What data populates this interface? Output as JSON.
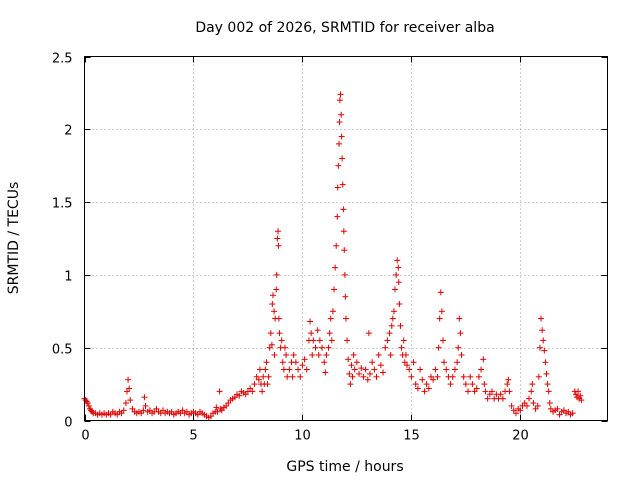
{
  "chart_data": {
    "type": "scatter",
    "title": "Day 002 of 2026, SRMTID for receiver alba",
    "xlabel": "GPS time / hours",
    "ylabel": "SRMTID / TECUs",
    "xlim": [
      0,
      24
    ],
    "ylim": [
      0,
      2.5
    ],
    "xticks": [
      0,
      5,
      10,
      15,
      20
    ],
    "yticks": [
      0,
      0.5,
      1,
      1.5,
      2,
      2.5
    ],
    "xtick_labels": [
      "0",
      "5",
      "10",
      "15",
      "20"
    ],
    "ytick_labels": [
      "0",
      "0.5",
      "1",
      "1.5",
      "2",
      "2.5"
    ],
    "grid": true,
    "marker": "plus",
    "color": "#e00000",
    "series": [
      {
        "name": "alba",
        "points": [
          [
            0.0,
            0.15
          ],
          [
            0.05,
            0.14
          ],
          [
            0.1,
            0.13
          ],
          [
            0.15,
            0.12
          ],
          [
            0.2,
            0.1
          ],
          [
            0.25,
            0.08
          ],
          [
            0.3,
            0.07
          ],
          [
            0.35,
            0.06
          ],
          [
            0.4,
            0.05
          ],
          [
            0.5,
            0.05
          ],
          [
            0.6,
            0.04
          ],
          [
            0.7,
            0.05
          ],
          [
            0.8,
            0.04
          ],
          [
            0.9,
            0.05
          ],
          [
            1.0,
            0.04
          ],
          [
            1.1,
            0.05
          ],
          [
            1.2,
            0.04
          ],
          [
            1.3,
            0.06
          ],
          [
            1.4,
            0.05
          ],
          [
            1.5,
            0.04
          ],
          [
            1.6,
            0.06
          ],
          [
            1.7,
            0.05
          ],
          [
            1.8,
            0.07
          ],
          [
            1.9,
            0.12
          ],
          [
            1.95,
            0.2
          ],
          [
            2.0,
            0.28
          ],
          [
            2.05,
            0.22
          ],
          [
            2.1,
            0.14
          ],
          [
            2.2,
            0.08
          ],
          [
            2.3,
            0.06
          ],
          [
            2.4,
            0.05
          ],
          [
            2.5,
            0.06
          ],
          [
            2.6,
            0.05
          ],
          [
            2.7,
            0.07
          ],
          [
            2.75,
            0.16
          ],
          [
            2.8,
            0.1
          ],
          [
            2.9,
            0.06
          ],
          [
            3.0,
            0.07
          ],
          [
            3.1,
            0.05
          ],
          [
            3.2,
            0.06
          ],
          [
            3.3,
            0.08
          ],
          [
            3.4,
            0.06
          ],
          [
            3.5,
            0.05
          ],
          [
            3.6,
            0.07
          ],
          [
            3.7,
            0.05
          ],
          [
            3.8,
            0.06
          ],
          [
            3.9,
            0.05
          ],
          [
            4.0,
            0.06
          ],
          [
            4.1,
            0.04
          ],
          [
            4.2,
            0.05
          ],
          [
            4.3,
            0.06
          ],
          [
            4.4,
            0.05
          ],
          [
            4.5,
            0.07
          ],
          [
            4.6,
            0.05
          ],
          [
            4.7,
            0.06
          ],
          [
            4.8,
            0.04
          ],
          [
            4.9,
            0.05
          ],
          [
            5.0,
            0.06
          ],
          [
            5.1,
            0.05
          ],
          [
            5.2,
            0.04
          ],
          [
            5.3,
            0.06
          ],
          [
            5.4,
            0.05
          ],
          [
            5.5,
            0.04
          ],
          [
            5.6,
            0.03
          ],
          [
            5.7,
            0.02
          ],
          [
            5.8,
            0.03
          ],
          [
            5.9,
            0.05
          ],
          [
            6.0,
            0.06
          ],
          [
            6.05,
            0.09
          ],
          [
            6.1,
            0.06
          ],
          [
            6.2,
            0.2
          ],
          [
            6.25,
            0.08
          ],
          [
            6.3,
            0.07
          ],
          [
            6.4,
            0.09
          ],
          [
            6.5,
            0.1
          ],
          [
            6.6,
            0.12
          ],
          [
            6.7,
            0.14
          ],
          [
            6.8,
            0.15
          ],
          [
            6.9,
            0.16
          ],
          [
            7.0,
            0.18
          ],
          [
            7.1,
            0.17
          ],
          [
            7.2,
            0.2
          ],
          [
            7.3,
            0.19
          ],
          [
            7.4,
            0.18
          ],
          [
            7.5,
            0.2
          ],
          [
            7.6,
            0.22
          ],
          [
            7.7,
            0.2
          ],
          [
            7.8,
            0.25
          ],
          [
            7.9,
            0.3
          ],
          [
            8.0,
            0.28
          ],
          [
            8.05,
            0.35
          ],
          [
            8.1,
            0.25
          ],
          [
            8.15,
            0.2
          ],
          [
            8.2,
            0.3
          ],
          [
            8.25,
            0.25
          ],
          [
            8.3,
            0.35
          ],
          [
            8.35,
            0.4
          ],
          [
            8.4,
            0.25
          ],
          [
            8.45,
            0.3
          ],
          [
            8.5,
            0.5
          ],
          [
            8.55,
            0.6
          ],
          [
            8.6,
            0.52
          ],
          [
            8.62,
            0.8
          ],
          [
            8.65,
            0.86
          ],
          [
            8.7,
            0.75
          ],
          [
            8.72,
            0.45
          ],
          [
            8.75,
            0.7
          ],
          [
            8.8,
            0.9
          ],
          [
            8.82,
            1.0
          ],
          [
            8.85,
            1.25
          ],
          [
            8.88,
            1.3
          ],
          [
            8.9,
            1.2
          ],
          [
            8.92,
            0.7
          ],
          [
            8.95,
            0.6
          ],
          [
            9.0,
            0.5
          ],
          [
            9.05,
            0.55
          ],
          [
            9.1,
            0.4
          ],
          [
            9.15,
            0.35
          ],
          [
            9.2,
            0.5
          ],
          [
            9.25,
            0.45
          ],
          [
            9.3,
            0.3
          ],
          [
            9.4,
            0.35
          ],
          [
            9.5,
            0.4
          ],
          [
            9.55,
            0.3
          ],
          [
            9.6,
            0.45
          ],
          [
            9.7,
            0.4
          ],
          [
            9.8,
            0.35
          ],
          [
            9.9,
            0.3
          ],
          [
            10.0,
            0.38
          ],
          [
            10.1,
            0.42
          ],
          [
            10.2,
            0.35
          ],
          [
            10.3,
            0.55
          ],
          [
            10.35,
            0.68
          ],
          [
            10.4,
            0.6
          ],
          [
            10.45,
            0.45
          ],
          [
            10.5,
            0.55
          ],
          [
            10.6,
            0.5
          ],
          [
            10.7,
            0.62
          ],
          [
            10.75,
            0.45
          ],
          [
            10.8,
            0.55
          ],
          [
            10.9,
            0.5
          ],
          [
            11.0,
            0.4
          ],
          [
            11.05,
            0.33
          ],
          [
            11.1,
            0.45
          ],
          [
            11.2,
            0.5
          ],
          [
            11.25,
            0.6
          ],
          [
            11.3,
            0.7
          ],
          [
            11.35,
            0.55
          ],
          [
            11.4,
            0.75
          ],
          [
            11.45,
            0.9
          ],
          [
            11.5,
            1.05
          ],
          [
            11.55,
            1.2
          ],
          [
            11.6,
            1.4
          ],
          [
            11.62,
            1.6
          ],
          [
            11.65,
            1.75
          ],
          [
            11.68,
            1.9
          ],
          [
            11.7,
            2.05
          ],
          [
            11.72,
            2.2
          ],
          [
            11.75,
            2.24
          ],
          [
            11.78,
            2.1
          ],
          [
            11.8,
            1.95
          ],
          [
            11.82,
            1.8
          ],
          [
            11.85,
            1.62
          ],
          [
            11.88,
            1.45
          ],
          [
            11.9,
            1.3
          ],
          [
            11.92,
            1.17
          ],
          [
            11.95,
            1.0
          ],
          [
            11.97,
            0.85
          ],
          [
            12.0,
            0.7
          ],
          [
            12.05,
            0.55
          ],
          [
            12.1,
            0.42
          ],
          [
            12.15,
            0.32
          ],
          [
            12.2,
            0.25
          ],
          [
            12.25,
            0.38
          ],
          [
            12.3,
            0.3
          ],
          [
            12.35,
            0.45
          ],
          [
            12.4,
            0.35
          ],
          [
            12.5,
            0.4
          ],
          [
            12.6,
            0.32
          ],
          [
            12.7,
            0.36
          ],
          [
            12.8,
            0.3
          ],
          [
            12.9,
            0.35
          ],
          [
            13.0,
            0.28
          ],
          [
            13.05,
            0.6
          ],
          [
            13.1,
            0.32
          ],
          [
            13.2,
            0.4
          ],
          [
            13.3,
            0.35
          ],
          [
            13.4,
            0.3
          ],
          [
            13.5,
            0.45
          ],
          [
            13.6,
            0.38
          ],
          [
            13.7,
            0.33
          ],
          [
            13.8,
            0.5
          ],
          [
            13.9,
            0.55
          ],
          [
            14.0,
            0.6
          ],
          [
            14.05,
            0.45
          ],
          [
            14.1,
            0.65
          ],
          [
            14.15,
            0.7
          ],
          [
            14.2,
            0.75
          ],
          [
            14.25,
            0.9
          ],
          [
            14.3,
            1.0
          ],
          [
            14.35,
            1.1
          ],
          [
            14.4,
            1.05
          ],
          [
            14.42,
            0.95
          ],
          [
            14.45,
            0.8
          ],
          [
            14.5,
            0.65
          ],
          [
            14.55,
            0.5
          ],
          [
            14.6,
            0.45
          ],
          [
            14.65,
            0.55
          ],
          [
            14.7,
            0.4
          ],
          [
            14.75,
            0.45
          ],
          [
            14.8,
            0.38
          ],
          [
            14.9,
            0.35
          ],
          [
            15.0,
            0.3
          ],
          [
            15.1,
            0.4
          ],
          [
            15.2,
            0.25
          ],
          [
            15.3,
            0.22
          ],
          [
            15.4,
            0.35
          ],
          [
            15.5,
            0.28
          ],
          [
            15.6,
            0.2
          ],
          [
            15.7,
            0.25
          ],
          [
            15.8,
            0.22
          ],
          [
            15.9,
            0.3
          ],
          [
            16.0,
            0.28
          ],
          [
            16.1,
            0.35
          ],
          [
            16.2,
            0.3
          ],
          [
            16.25,
            0.5
          ],
          [
            16.3,
            0.7
          ],
          [
            16.35,
            0.88
          ],
          [
            16.4,
            0.75
          ],
          [
            16.45,
            0.55
          ],
          [
            16.5,
            0.4
          ],
          [
            16.6,
            0.35
          ],
          [
            16.7,
            0.3
          ],
          [
            16.8,
            0.25
          ],
          [
            16.9,
            0.3
          ],
          [
            17.0,
            0.35
          ],
          [
            17.1,
            0.4
          ],
          [
            17.15,
            0.5
          ],
          [
            17.2,
            0.7
          ],
          [
            17.25,
            0.6
          ],
          [
            17.3,
            0.45
          ],
          [
            17.4,
            0.3
          ],
          [
            17.5,
            0.25
          ],
          [
            17.6,
            0.2
          ],
          [
            17.7,
            0.3
          ],
          [
            17.8,
            0.25
          ],
          [
            17.9,
            0.2
          ],
          [
            18.0,
            0.22
          ],
          [
            18.1,
            0.3
          ],
          [
            18.2,
            0.35
          ],
          [
            18.3,
            0.42
          ],
          [
            18.35,
            0.25
          ],
          [
            18.4,
            0.2
          ],
          [
            18.5,
            0.15
          ],
          [
            18.6,
            0.18
          ],
          [
            18.7,
            0.2
          ],
          [
            18.8,
            0.15
          ],
          [
            18.9,
            0.18
          ],
          [
            19.0,
            0.15
          ],
          [
            19.1,
            0.18
          ],
          [
            19.2,
            0.15
          ],
          [
            19.3,
            0.2
          ],
          [
            19.4,
            0.25
          ],
          [
            19.45,
            0.28
          ],
          [
            19.5,
            0.2
          ],
          [
            19.6,
            0.1
          ],
          [
            19.7,
            0.07
          ],
          [
            19.8,
            0.05
          ],
          [
            19.9,
            0.08
          ],
          [
            20.0,
            0.07
          ],
          [
            20.1,
            0.1
          ],
          [
            20.2,
            0.12
          ],
          [
            20.3,
            0.1
          ],
          [
            20.4,
            0.15
          ],
          [
            20.5,
            0.2
          ],
          [
            20.55,
            0.25
          ],
          [
            20.6,
            0.12
          ],
          [
            20.7,
            0.08
          ],
          [
            20.8,
            0.1
          ],
          [
            20.85,
            0.3
          ],
          [
            20.9,
            0.5
          ],
          [
            20.95,
            0.7
          ],
          [
            21.0,
            0.62
          ],
          [
            21.05,
            0.55
          ],
          [
            21.1,
            0.48
          ],
          [
            21.15,
            0.4
          ],
          [
            21.2,
            0.32
          ],
          [
            21.25,
            0.25
          ],
          [
            21.3,
            0.2
          ],
          [
            21.35,
            0.12
          ],
          [
            21.4,
            0.08
          ],
          [
            21.5,
            0.06
          ],
          [
            21.6,
            0.07
          ],
          [
            21.7,
            0.08
          ],
          [
            21.8,
            0.04
          ],
          [
            21.9,
            0.06
          ],
          [
            22.0,
            0.07
          ],
          [
            22.1,
            0.05
          ],
          [
            22.2,
            0.06
          ],
          [
            22.3,
            0.04
          ],
          [
            22.4,
            0.05
          ],
          [
            22.5,
            0.2
          ],
          [
            22.55,
            0.18
          ],
          [
            22.6,
            0.16
          ],
          [
            22.65,
            0.2
          ],
          [
            22.7,
            0.15
          ],
          [
            22.75,
            0.17
          ],
          [
            22.8,
            0.14
          ]
        ]
      }
    ]
  }
}
